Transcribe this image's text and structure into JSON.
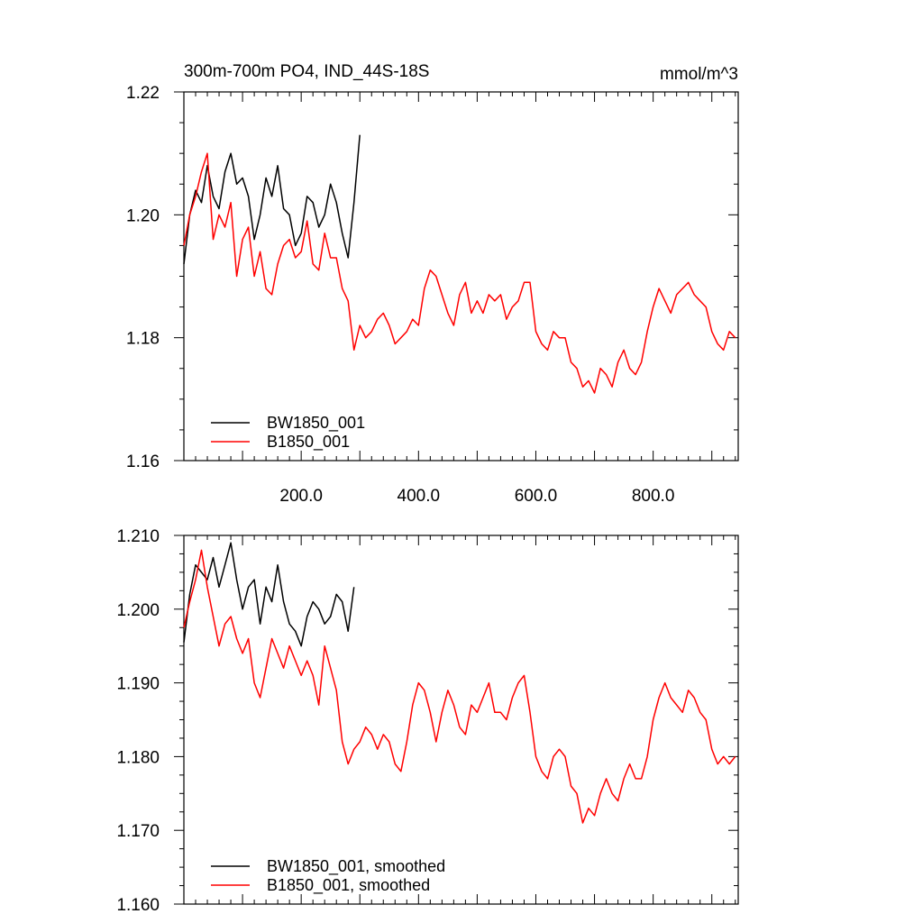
{
  "chart_data": [
    {
      "type": "line",
      "title": "300m-700m PO4, IND_44S-18S",
      "units": "mmol/m^3",
      "xlabel": "",
      "ylabel": "",
      "xlim": [
        0,
        945
      ],
      "ylim": [
        1.16,
        1.22
      ],
      "xticks": [
        200,
        400,
        600,
        800
      ],
      "xtick_labels": [
        "200.0",
        "400.0",
        "600.0",
        "800.0"
      ],
      "yticks": [
        1.16,
        1.18,
        1.2,
        1.22
      ],
      "ytick_labels": [
        "1.16",
        "1.18",
        "1.20",
        "1.22"
      ],
      "grid": false,
      "legend": "bottom-left",
      "series": [
        {
          "name": "BW1850_001",
          "color": "#000000",
          "x": [
            0,
            10,
            20,
            30,
            40,
            50,
            60,
            70,
            80,
            90,
            100,
            110,
            120,
            130,
            140,
            150,
            160,
            170,
            180,
            190,
            200,
            210,
            220,
            230,
            240,
            250,
            260,
            270,
            280,
            290,
            300
          ],
          "y": [
            1.192,
            1.2,
            1.204,
            1.202,
            1.208,
            1.203,
            1.201,
            1.207,
            1.21,
            1.205,
            1.206,
            1.203,
            1.196,
            1.2,
            1.206,
            1.203,
            1.208,
            1.201,
            1.2,
            1.195,
            1.197,
            1.203,
            1.202,
            1.198,
            1.2,
            1.205,
            1.202,
            1.197,
            1.193,
            1.202,
            1.213
          ]
        },
        {
          "name": "B1850_001",
          "color": "#ff0000",
          "x": [
            0,
            10,
            20,
            30,
            40,
            50,
            60,
            70,
            80,
            90,
            100,
            110,
            120,
            130,
            140,
            150,
            160,
            170,
            180,
            190,
            200,
            210,
            220,
            230,
            240,
            250,
            260,
            270,
            280,
            290,
            300,
            310,
            320,
            330,
            340,
            350,
            360,
            370,
            380,
            390,
            400,
            410,
            420,
            430,
            440,
            450,
            460,
            470,
            480,
            490,
            500,
            510,
            520,
            530,
            540,
            550,
            560,
            570,
            580,
            590,
            600,
            610,
            620,
            630,
            640,
            650,
            660,
            670,
            680,
            690,
            700,
            710,
            720,
            730,
            740,
            750,
            760,
            770,
            780,
            790,
            800,
            810,
            820,
            830,
            840,
            850,
            860,
            870,
            880,
            890,
            900,
            910,
            920,
            930,
            940
          ],
          "y": [
            1.195,
            1.2,
            1.203,
            1.207,
            1.21,
            1.196,
            1.2,
            1.198,
            1.202,
            1.19,
            1.196,
            1.198,
            1.19,
            1.194,
            1.188,
            1.187,
            1.192,
            1.195,
            1.196,
            1.193,
            1.194,
            1.199,
            1.192,
            1.191,
            1.197,
            1.193,
            1.193,
            1.188,
            1.186,
            1.178,
            1.182,
            1.18,
            1.181,
            1.183,
            1.184,
            1.182,
            1.179,
            1.18,
            1.181,
            1.183,
            1.182,
            1.188,
            1.191,
            1.19,
            1.187,
            1.184,
            1.182,
            1.187,
            1.189,
            1.184,
            1.186,
            1.184,
            1.187,
            1.186,
            1.187,
            1.183,
            1.185,
            1.186,
            1.189,
            1.189,
            1.181,
            1.179,
            1.178,
            1.181,
            1.18,
            1.18,
            1.176,
            1.175,
            1.172,
            1.173,
            1.171,
            1.175,
            1.174,
            1.172,
            1.176,
            1.178,
            1.175,
            1.174,
            1.176,
            1.181,
            1.185,
            1.188,
            1.186,
            1.184,
            1.187,
            1.188,
            1.189,
            1.187,
            1.186,
            1.185,
            1.181,
            1.179,
            1.178,
            1.181,
            1.18
          ]
        }
      ]
    },
    {
      "type": "line",
      "title": "",
      "xlabel": "",
      "ylabel": "",
      "xlim": [
        0,
        945
      ],
      "ylim": [
        1.16,
        1.21
      ],
      "yticks": [
        1.16,
        1.17,
        1.18,
        1.19,
        1.2,
        1.21
      ],
      "ytick_labels": [
        "1.160",
        "1.170",
        "1.180",
        "1.190",
        "1.200",
        "1.210"
      ],
      "grid": false,
      "legend": "bottom-left",
      "series": [
        {
          "name": "BW1850_001, smoothed",
          "color": "#000000",
          "x": [
            0,
            10,
            20,
            30,
            40,
            50,
            60,
            70,
            80,
            90,
            100,
            110,
            120,
            130,
            140,
            150,
            160,
            170,
            180,
            190,
            200,
            210,
            220,
            230,
            240,
            250,
            260,
            270,
            280,
            290
          ],
          "y": [
            1.1955,
            1.202,
            1.206,
            1.205,
            1.204,
            1.207,
            1.203,
            1.206,
            1.209,
            1.204,
            1.2,
            1.203,
            1.204,
            1.198,
            1.203,
            1.201,
            1.206,
            1.201,
            1.198,
            1.197,
            1.195,
            1.199,
            1.201,
            1.2,
            1.198,
            1.199,
            1.202,
            1.201,
            1.197,
            1.203
          ]
        },
        {
          "name": "B1850_001, smoothed",
          "color": "#ff0000",
          "x": [
            0,
            10,
            20,
            30,
            40,
            50,
            60,
            70,
            80,
            90,
            100,
            110,
            120,
            130,
            140,
            150,
            160,
            170,
            180,
            190,
            200,
            210,
            220,
            230,
            240,
            250,
            260,
            270,
            280,
            290,
            300,
            310,
            320,
            330,
            340,
            350,
            360,
            370,
            380,
            390,
            400,
            410,
            420,
            430,
            440,
            450,
            460,
            470,
            480,
            490,
            500,
            510,
            520,
            530,
            540,
            550,
            560,
            570,
            580,
            590,
            600,
            610,
            620,
            630,
            640,
            650,
            660,
            670,
            680,
            690,
            700,
            710,
            720,
            730,
            740,
            750,
            760,
            770,
            780,
            790,
            800,
            810,
            820,
            830,
            840,
            850,
            860,
            870,
            880,
            890,
            900,
            910,
            920,
            930,
            940
          ],
          "y": [
            1.1975,
            1.201,
            1.204,
            1.208,
            1.203,
            1.199,
            1.195,
            1.198,
            1.199,
            1.196,
            1.194,
            1.196,
            1.19,
            1.188,
            1.192,
            1.196,
            1.194,
            1.192,
            1.195,
            1.193,
            1.191,
            1.193,
            1.191,
            1.187,
            1.195,
            1.192,
            1.189,
            1.182,
            1.179,
            1.181,
            1.182,
            1.184,
            1.183,
            1.181,
            1.183,
            1.182,
            1.179,
            1.178,
            1.182,
            1.187,
            1.19,
            1.189,
            1.186,
            1.182,
            1.186,
            1.189,
            1.187,
            1.184,
            1.183,
            1.187,
            1.186,
            1.188,
            1.19,
            1.186,
            1.186,
            1.185,
            1.188,
            1.19,
            1.191,
            1.186,
            1.18,
            1.178,
            1.177,
            1.18,
            1.181,
            1.18,
            1.176,
            1.175,
            1.171,
            1.173,
            1.172,
            1.175,
            1.177,
            1.175,
            1.174,
            1.177,
            1.179,
            1.177,
            1.177,
            1.18,
            1.185,
            1.188,
            1.19,
            1.188,
            1.187,
            1.186,
            1.189,
            1.188,
            1.186,
            1.185,
            1.181,
            1.179,
            1.18,
            1.179,
            1.18
          ]
        }
      ]
    }
  ]
}
